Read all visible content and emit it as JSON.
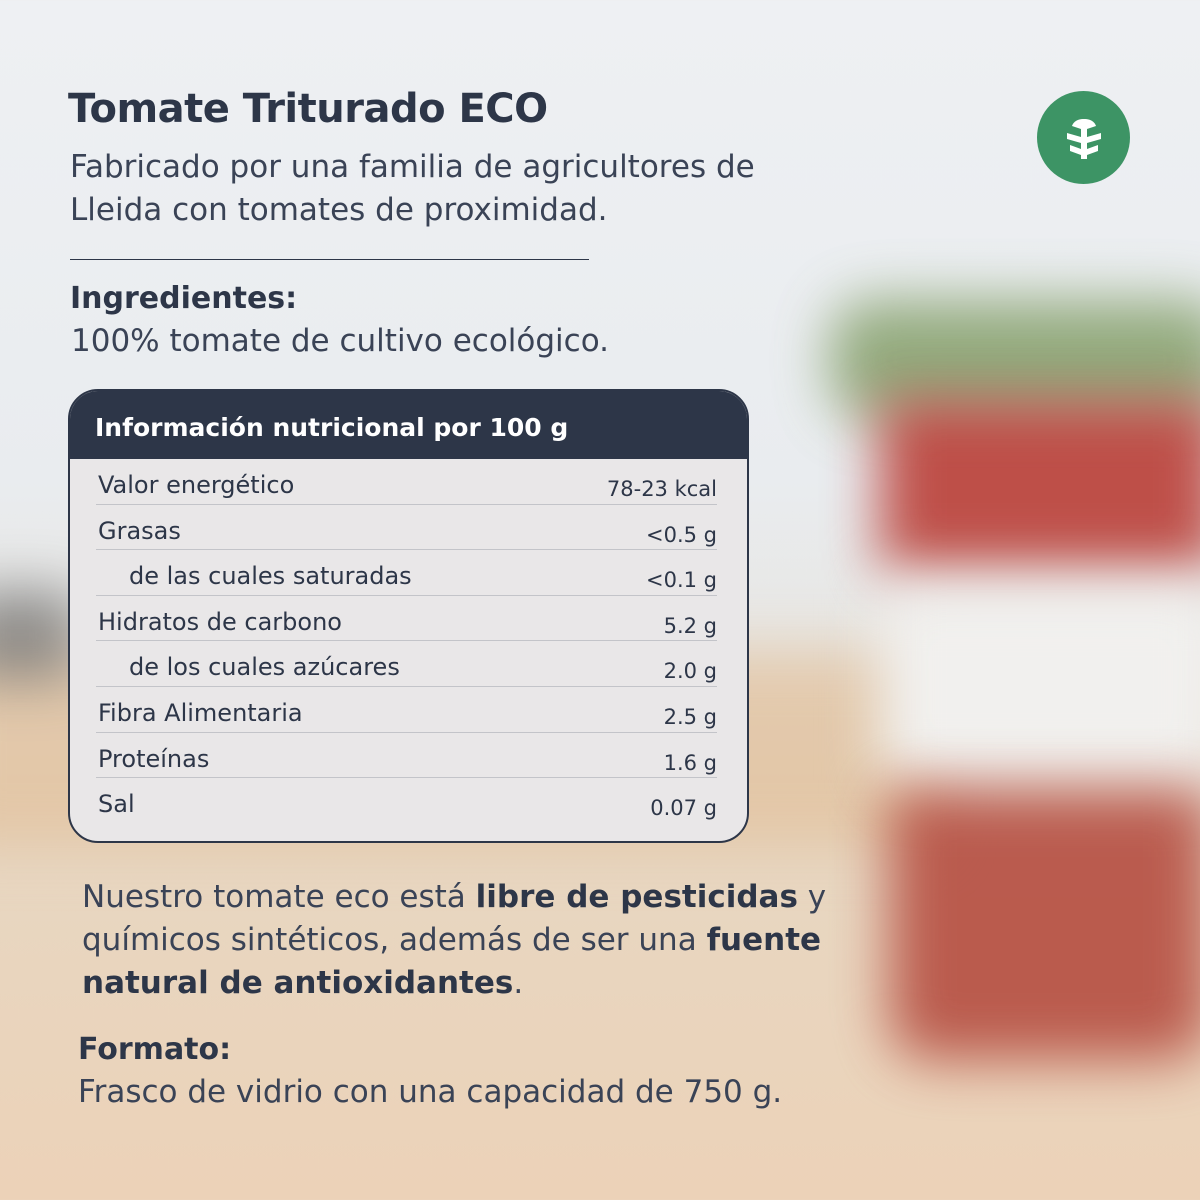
{
  "header": {
    "title": "Tomate Triturado ECO",
    "subtitle": "Fabricado por una familia de agricultores de Lleida con tomates de proximidad."
  },
  "badge": {
    "icon": "tree-icon",
    "color": "#3d9465"
  },
  "ingredients": {
    "heading": "Ingredientes:",
    "text": "100% tomate de cultivo ecológico."
  },
  "nutrition": {
    "title": "Información nutricional por 100 g",
    "rows": [
      {
        "label": "Valor energético",
        "value": "78-23 kcal"
      },
      {
        "label": "Grasas",
        "value": "<0.5 g"
      },
      {
        "label": "de las cuales saturadas",
        "value": "<0.1 g"
      },
      {
        "label": "Hidratos de carbono",
        "value": "5.2 g"
      },
      {
        "label": "de los cuales azúcares",
        "value": "2.0 g"
      },
      {
        "label": "Fibra Alimentaria",
        "value": "2.5 g"
      },
      {
        "label": "Proteínas",
        "value": "1.6 g"
      },
      {
        "label": "Sal",
        "value": "0.07 g"
      }
    ]
  },
  "description": {
    "p1": "Nuestro tomate eco está ",
    "b1": "libre de pesticidas",
    "p2": " y químicos sintéticos, además de ser una ",
    "b2": "fuente natural de antioxidantes",
    "p3": "."
  },
  "format": {
    "heading": "Formato:",
    "text": "Frasco de vidrio con una capacidad de 750 g."
  }
}
